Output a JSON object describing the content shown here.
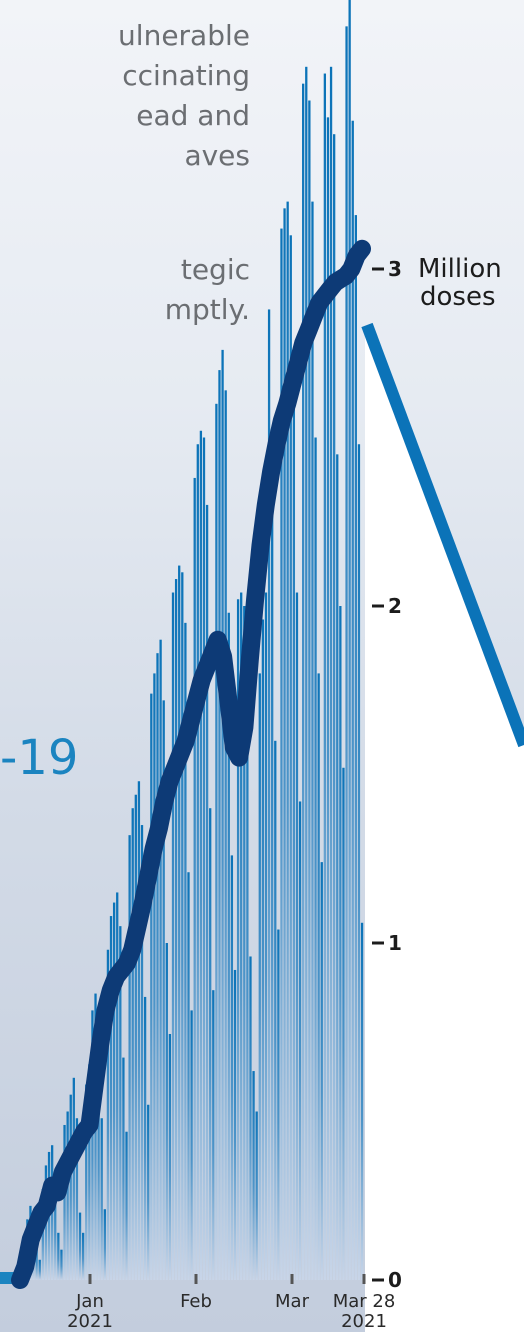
{
  "intro": {
    "line1": "ulnerable",
    "line2": "ccinating",
    "line3": "ead and",
    "line4": "aves",
    "line5": "tegic",
    "line6": "mptly."
  },
  "big_label": "-19",
  "chart_data": {
    "type": "bar",
    "title": "",
    "ylabel": "Million doses",
    "ylim": [
      0,
      3.4
    ],
    "y_ticks": [
      0,
      1,
      2,
      3
    ],
    "y_tick_labels": [
      "0",
      "1",
      "2",
      "3"
    ],
    "y_unit_label": [
      "Million",
      "doses"
    ],
    "x_ticks": [
      {
        "label": "Jan",
        "label2": "2021"
      },
      {
        "label": "Feb",
        "label2": ""
      },
      {
        "label": "Mar",
        "label2": ""
      },
      {
        "label": "Mar 28",
        "label2": "2021"
      }
    ],
    "daily_doses_million": [
      0.04,
      0.12,
      0.18,
      0.22,
      0.2,
      0.1,
      0.06,
      0.27,
      0.34,
      0.38,
      0.4,
      0.3,
      0.14,
      0.09,
      0.46,
      0.5,
      0.55,
      0.6,
      0.48,
      0.2,
      0.14,
      0.58,
      0.64,
      0.8,
      0.85,
      0.72,
      0.48,
      0.21,
      0.98,
      1.08,
      1.12,
      1.15,
      1.05,
      0.66,
      0.44,
      1.32,
      1.4,
      1.44,
      1.48,
      1.35,
      0.84,
      0.52,
      1.74,
      1.8,
      1.86,
      1.9,
      1.72,
      1.0,
      0.73,
      2.04,
      2.08,
      2.12,
      2.1,
      1.95,
      1.21,
      0.8,
      2.38,
      2.48,
      2.52,
      2.5,
      2.3,
      1.4,
      0.86,
      2.6,
      2.7,
      2.76,
      2.64,
      1.98,
      1.26,
      0.92,
      2.02,
      2.04,
      2.0,
      1.82,
      0.96,
      0.62,
      0.5,
      1.8,
      1.96,
      2.04,
      2.88,
      2.3,
      1.6,
      1.04,
      3.12,
      3.18,
      3.2,
      3.1,
      2.76,
      2.04,
      1.42,
      3.55,
      3.6,
      3.5,
      3.2,
      2.5,
      1.8,
      1.24,
      3.58,
      3.45,
      3.6,
      3.4,
      2.45,
      2.0,
      1.52,
      3.72,
      3.8,
      3.44,
      3.16,
      2.48,
      1.06
    ],
    "seven_day_avg_million": [
      0.0,
      0.04,
      0.12,
      0.16,
      0.2,
      0.22,
      0.28,
      0.26,
      0.32,
      0.35,
      0.38,
      0.41,
      0.44,
      0.46,
      0.58,
      0.7,
      0.8,
      0.86,
      0.9,
      0.92,
      0.94,
      0.98,
      1.05,
      1.12,
      1.2,
      1.28,
      1.34,
      1.42,
      1.48,
      1.52,
      1.56,
      1.6,
      1.66,
      1.72,
      1.78,
      1.82,
      1.86,
      1.9,
      1.85,
      1.72,
      1.58,
      1.55,
      1.64,
      1.84,
      2.02,
      2.18,
      2.3,
      2.4,
      2.48,
      2.55,
      2.6,
      2.66,
      2.72,
      2.78,
      2.82,
      2.86,
      2.9,
      2.92,
      2.94,
      2.96,
      2.97,
      2.98,
      3.0,
      3.04,
      3.06
    ]
  }
}
